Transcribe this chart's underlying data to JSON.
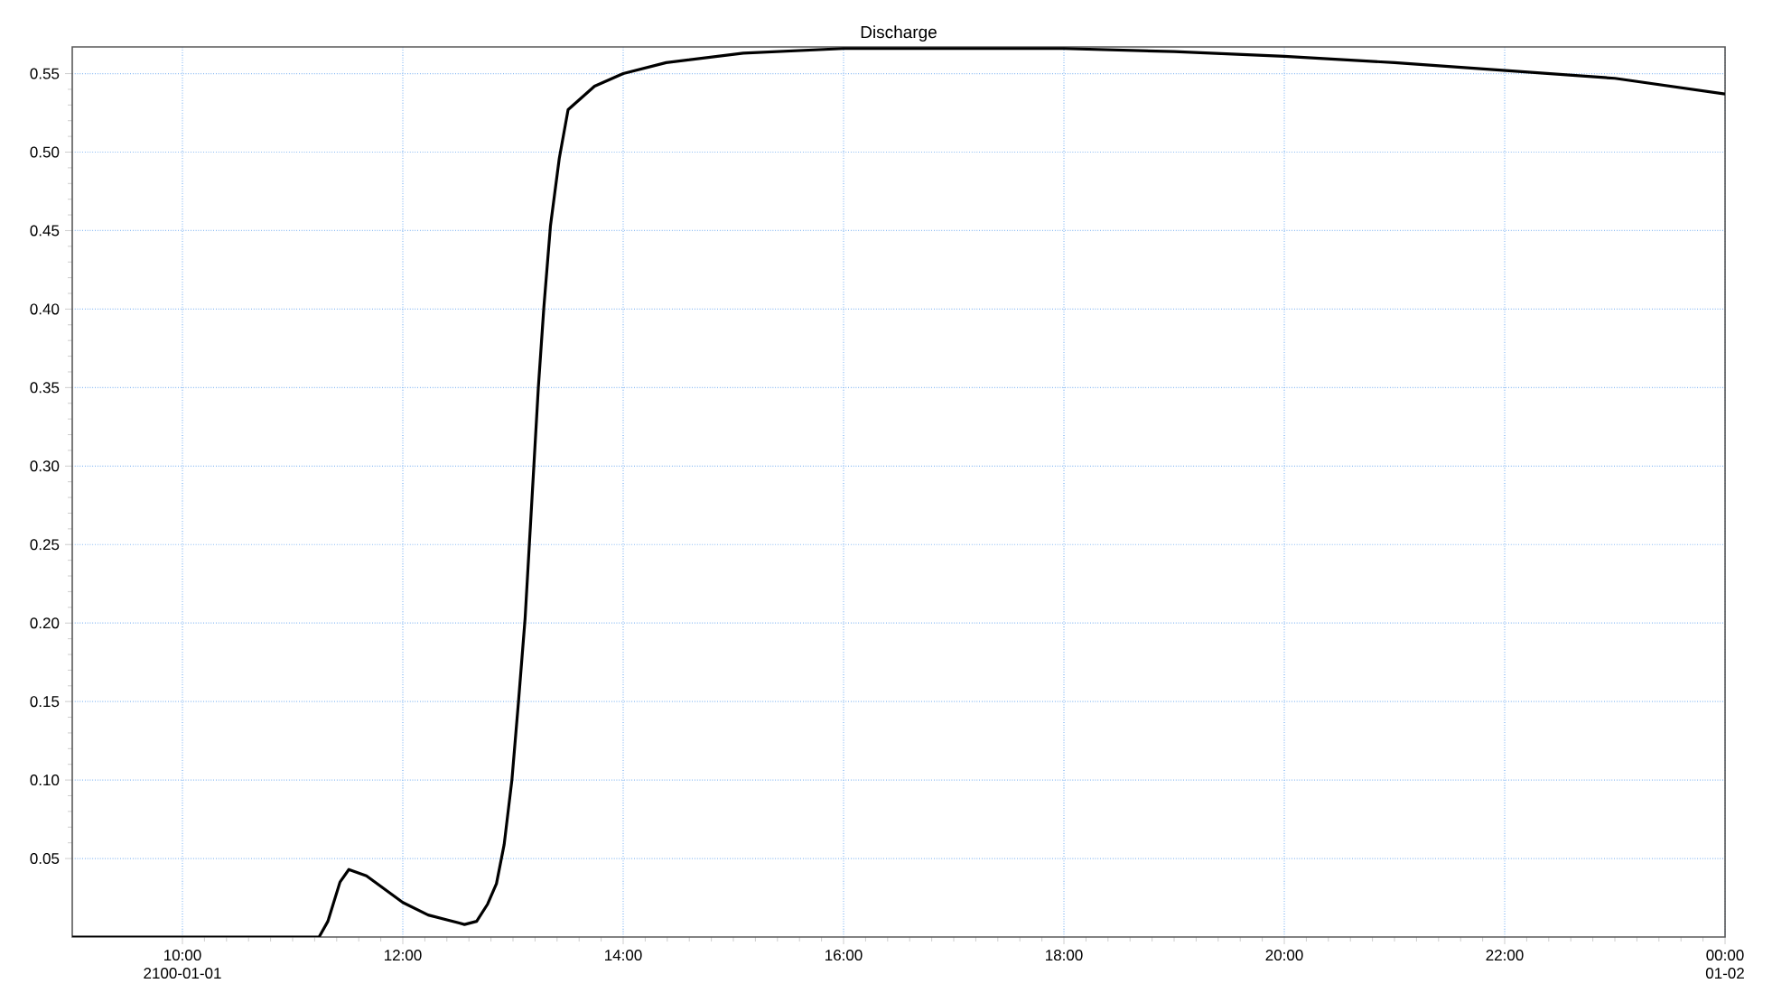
{
  "chart_data": {
    "type": "line",
    "title": "Discharge",
    "x": [
      9.0,
      11.24,
      11.32,
      11.43,
      11.51,
      11.67,
      12.0,
      12.23,
      12.56,
      12.67,
      12.77,
      12.85,
      12.92,
      12.99,
      13.05,
      13.11,
      13.15,
      13.19,
      13.23,
      13.28,
      13.34,
      13.42,
      13.5,
      13.74,
      14.0,
      14.39,
      15.09,
      16.0,
      17.0,
      18.0,
      19.0,
      20.0,
      21.0,
      22.0,
      23.0,
      24.0
    ],
    "series": [
      {
        "color": "#000000",
        "values": [
          0,
          0,
          0.01,
          0.035,
          0.043,
          0.039,
          0.022,
          0.014,
          0.008,
          0.01,
          0.021,
          0.034,
          0.059,
          0.1,
          0.15,
          0.203,
          0.252,
          0.301,
          0.35,
          0.401,
          0.453,
          0.496,
          0.527,
          0.542,
          0.55,
          0.557,
          0.563,
          0.566,
          0.566,
          0.566,
          0.564,
          0.561,
          0.557,
          0.552,
          0.547,
          0.537
        ]
      }
    ],
    "xlim": [
      9,
      24
    ],
    "ylim": [
      0,
      0.567
    ],
    "xticks": [
      {
        "value": 10,
        "label": "10:00 2100-01-01"
      },
      {
        "value": 12,
        "label": "12:00"
      },
      {
        "value": 14,
        "label": "14:00"
      },
      {
        "value": 16,
        "label": "16:00"
      },
      {
        "value": 18,
        "label": "18:00"
      },
      {
        "value": 20,
        "label": "20:00"
      },
      {
        "value": 22,
        "label": "22:00"
      },
      {
        "value": 24,
        "label": "00:00 01-02"
      }
    ],
    "yticks": [
      {
        "value": 0.05,
        "label": "0.05"
      },
      {
        "value": 0.1,
        "label": "0.10"
      },
      {
        "value": 0.15,
        "label": "0.15"
      },
      {
        "value": 0.2,
        "label": "0.20"
      },
      {
        "value": 0.25,
        "label": "0.25"
      },
      {
        "value": 0.3,
        "label": "0.30"
      },
      {
        "value": 0.35,
        "label": "0.35"
      },
      {
        "value": 0.4,
        "label": "0.40"
      },
      {
        "value": 0.45,
        "label": "0.45"
      },
      {
        "value": 0.5,
        "label": "0.50"
      },
      {
        "value": 0.55,
        "label": "0.55"
      }
    ],
    "grid": true,
    "marker": "none",
    "line_style": "solid"
  }
}
